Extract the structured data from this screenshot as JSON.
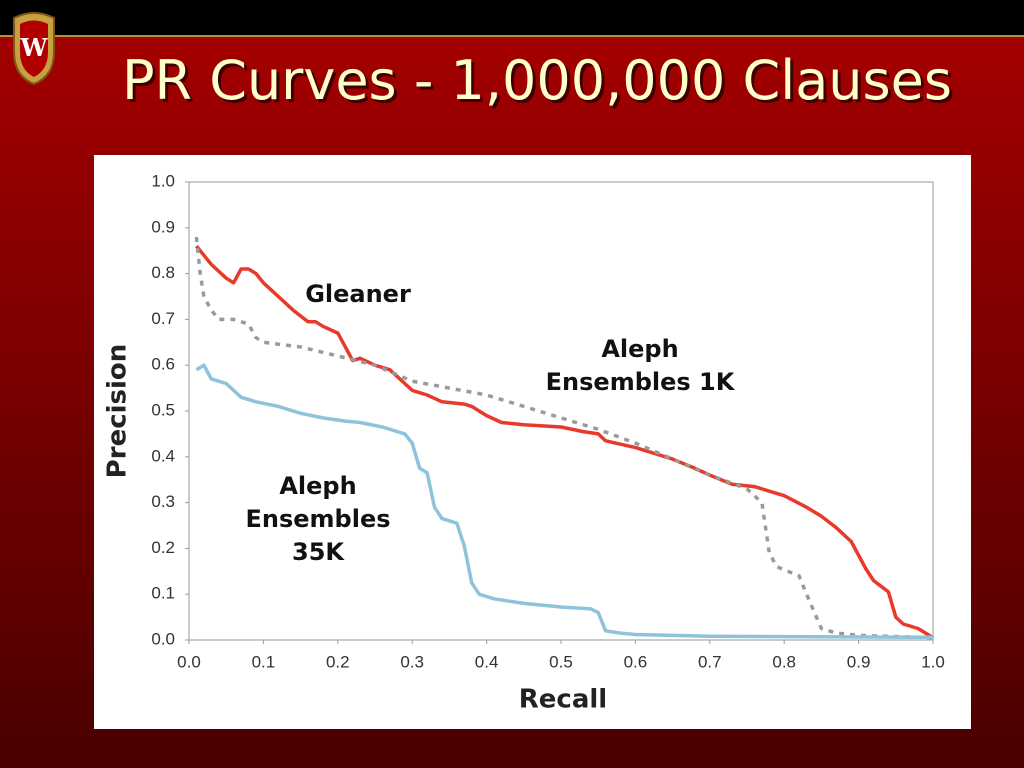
{
  "title": "PR Curves - 1,000,000 Clauses",
  "chart_data": {
    "type": "line",
    "x_label": "Recall",
    "y_label": "Precision",
    "xlim": [
      0,
      1
    ],
    "ylim": [
      0,
      1
    ],
    "xticks": [
      {
        "value": 0,
        "label": "0.0"
      },
      0.1,
      0.2,
      0.3,
      0.4,
      0.5,
      0.6,
      0.7,
      0.8,
      0.9,
      {
        "value": 1,
        "label": "1.0"
      }
    ],
    "yticks": [
      {
        "value": 0,
        "label": "0.0"
      },
      0.1,
      0.2,
      0.3,
      0.4,
      0.5,
      0.6,
      0.7,
      0.8,
      0.9,
      {
        "value": 1,
        "label": "1.0"
      }
    ],
    "grid": false,
    "series": [
      {
        "name": "Gleaner",
        "color": "#e8392b",
        "line_style": "solid",
        "x": [
          0.01,
          0.02,
          0.03,
          0.05,
          0.06,
          0.07,
          0.08,
          0.09,
          0.1,
          0.12,
          0.14,
          0.16,
          0.17,
          0.18,
          0.2,
          0.22,
          0.23,
          0.25,
          0.27,
          0.29,
          0.3,
          0.32,
          0.34,
          0.37,
          0.38,
          0.4,
          0.42,
          0.45,
          0.5,
          0.53,
          0.55,
          0.56,
          0.6,
          0.65,
          0.68,
          0.7,
          0.73,
          0.76,
          0.8,
          0.83,
          0.85,
          0.87,
          0.89,
          0.91,
          0.92,
          0.94,
          0.95,
          0.96,
          0.98,
          1.0
        ],
        "values": [
          0.86,
          0.84,
          0.82,
          0.79,
          0.78,
          0.81,
          0.81,
          0.8,
          0.78,
          0.75,
          0.72,
          0.695,
          0.695,
          0.685,
          0.67,
          0.61,
          0.615,
          0.6,
          0.59,
          0.56,
          0.545,
          0.535,
          0.52,
          0.515,
          0.51,
          0.49,
          0.475,
          0.47,
          0.465,
          0.455,
          0.45,
          0.435,
          0.42,
          0.395,
          0.375,
          0.36,
          0.34,
          0.335,
          0.315,
          0.29,
          0.27,
          0.245,
          0.215,
          0.155,
          0.13,
          0.105,
          0.05,
          0.035,
          0.025,
          0.005
        ]
      },
      {
        "name": "Aleph Ensembles 1K",
        "color": "#9a9a9a",
        "line_style": "dotted",
        "x": [
          0.01,
          0.015,
          0.02,
          0.03,
          0.04,
          0.06,
          0.08,
          0.09,
          0.1,
          0.15,
          0.2,
          0.25,
          0.3,
          0.35,
          0.4,
          0.45,
          0.5,
          0.55,
          0.6,
          0.65,
          0.7,
          0.75,
          0.77,
          0.78,
          0.79,
          0.82,
          0.83,
          0.85,
          0.87,
          0.9,
          1.0
        ],
        "values": [
          0.88,
          0.8,
          0.75,
          0.72,
          0.7,
          0.7,
          0.69,
          0.66,
          0.65,
          0.64,
          0.62,
          0.6,
          0.565,
          0.55,
          0.535,
          0.51,
          0.485,
          0.46,
          0.43,
          0.395,
          0.36,
          0.33,
          0.3,
          0.19,
          0.16,
          0.14,
          0.1,
          0.025,
          0.015,
          0.01,
          0.005
        ]
      },
      {
        "name": "Aleph Ensembles 35K",
        "color": "#8fc3dc",
        "line_style": "solid",
        "x": [
          0.01,
          0.02,
          0.03,
          0.05,
          0.07,
          0.09,
          0.12,
          0.15,
          0.18,
          0.21,
          0.23,
          0.26,
          0.29,
          0.3,
          0.31,
          0.32,
          0.33,
          0.34,
          0.36,
          0.37,
          0.38,
          0.39,
          0.41,
          0.45,
          0.5,
          0.54,
          0.55,
          0.56,
          0.58,
          0.6,
          0.7,
          1.0
        ],
        "values": [
          0.59,
          0.6,
          0.57,
          0.56,
          0.53,
          0.52,
          0.51,
          0.495,
          0.485,
          0.478,
          0.475,
          0.465,
          0.45,
          0.43,
          0.375,
          0.365,
          0.29,
          0.265,
          0.255,
          0.205,
          0.125,
          0.1,
          0.09,
          0.08,
          0.072,
          0.068,
          0.06,
          0.02,
          0.015,
          0.012,
          0.008,
          0.006
        ]
      }
    ]
  }
}
